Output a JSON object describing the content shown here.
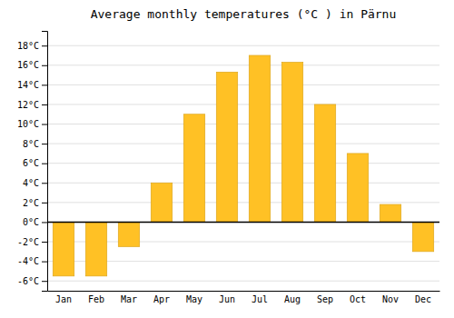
{
  "chart_data": {
    "type": "bar",
    "title": "Average monthly temperatures (°C ) in Pärnu",
    "categories": [
      "Jan",
      "Feb",
      "Mar",
      "Apr",
      "May",
      "Jun",
      "Jul",
      "Aug",
      "Sep",
      "Oct",
      "Nov",
      "Dec"
    ],
    "values": [
      -5.5,
      -5.5,
      -2.5,
      4.0,
      11.0,
      15.3,
      17.0,
      16.3,
      12.0,
      7.0,
      1.8,
      -3.0
    ],
    "color": "#FFC125",
    "ylim": [
      -7,
      19.5
    ],
    "yticks": [
      {
        "value": -6,
        "label": "-6°C"
      },
      {
        "value": -4,
        "label": "-4°C"
      },
      {
        "value": -2,
        "label": "-2°C"
      },
      {
        "value": 0,
        "label": "0°C"
      },
      {
        "value": 2,
        "label": "2°C"
      },
      {
        "value": 4,
        "label": "4°C"
      },
      {
        "value": 6,
        "label": "6°C"
      },
      {
        "value": 8,
        "label": "8°C"
      },
      {
        "value": 10,
        "label": "10°C"
      },
      {
        "value": 12,
        "label": "12°C"
      },
      {
        "value": 14,
        "label": "14°C"
      },
      {
        "value": 16,
        "label": "16°C"
      },
      {
        "value": 18,
        "label": "18°C"
      }
    ],
    "grid": true
  }
}
